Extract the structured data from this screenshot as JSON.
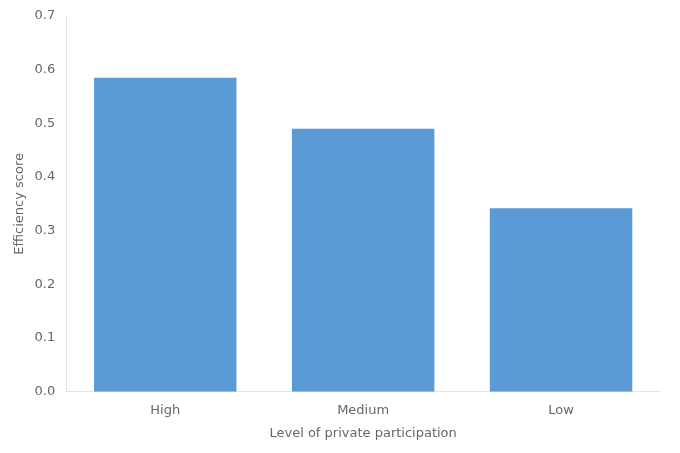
{
  "chart_data": {
    "type": "bar",
    "categories": [
      "High",
      "Medium",
      "Low"
    ],
    "values": [
      0.585,
      0.49,
      0.342
    ],
    "color": "#5B9BD5",
    "xlabel": "Level of private participation",
    "ylabel": "Efficiency score",
    "ylim": [
      0,
      0.7
    ],
    "yticks": [
      {
        "value": 0,
        "label": "0.0"
      },
      0.1,
      0.2,
      0.3,
      0.4,
      0.5,
      0.6,
      0.7
    ],
    "grid": false
  }
}
